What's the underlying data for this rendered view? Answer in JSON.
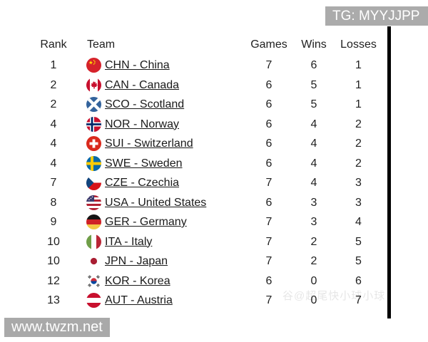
{
  "badges": {
    "top_right": "TG: MYYJJPP",
    "bottom_left": "www.twzm.net"
  },
  "faint_watermark": "谷@超尾快小球小球",
  "table": {
    "headers": {
      "rank": "Rank",
      "team": "Team",
      "games": "Games",
      "wins": "Wins",
      "losses": "Losses"
    },
    "rows": [
      {
        "rank": "1",
        "flag": "chn",
        "flag_name": "china-flag-icon",
        "team": "CHN - China",
        "games": "7",
        "wins": "6",
        "losses": "1"
      },
      {
        "rank": "2",
        "flag": "can",
        "flag_name": "canada-flag-icon",
        "team": "CAN - Canada",
        "games": "6",
        "wins": "5",
        "losses": "1"
      },
      {
        "rank": "2",
        "flag": "sco",
        "flag_name": "scotland-flag-icon",
        "team": "SCO - Scotland",
        "games": "6",
        "wins": "5",
        "losses": "1"
      },
      {
        "rank": "4",
        "flag": "nor",
        "flag_name": "norway-flag-icon",
        "team": "NOR - Norway",
        "games": "6",
        "wins": "4",
        "losses": "2"
      },
      {
        "rank": "4",
        "flag": "sui",
        "flag_name": "switzerland-flag-icon",
        "team": "SUI - Switzerland",
        "games": "6",
        "wins": "4",
        "losses": "2"
      },
      {
        "rank": "4",
        "flag": "swe",
        "flag_name": "sweden-flag-icon",
        "team": "SWE - Sweden",
        "games": "6",
        "wins": "4",
        "losses": "2"
      },
      {
        "rank": "7",
        "flag": "cze",
        "flag_name": "czechia-flag-icon",
        "team": "CZE - Czechia",
        "games": "7",
        "wins": "4",
        "losses": "3"
      },
      {
        "rank": "8",
        "flag": "usa",
        "flag_name": "united-states-flag-icon",
        "team": "USA - United States",
        "games": "6",
        "wins": "3",
        "losses": "3"
      },
      {
        "rank": "9",
        "flag": "ger",
        "flag_name": "germany-flag-icon",
        "team": "GER - Germany",
        "games": "7",
        "wins": "3",
        "losses": "4"
      },
      {
        "rank": "10",
        "flag": "ita",
        "flag_name": "italy-flag-icon",
        "team": "ITA - Italy",
        "games": "7",
        "wins": "2",
        "losses": "5"
      },
      {
        "rank": "10",
        "flag": "jpn",
        "flag_name": "japan-flag-icon",
        "team": "JPN - Japan",
        "games": "7",
        "wins": "2",
        "losses": "5"
      },
      {
        "rank": "12",
        "flag": "kor",
        "flag_name": "korea-flag-icon",
        "team": "KOR - Korea",
        "games": "6",
        "wins": "0",
        "losses": "6"
      },
      {
        "rank": "13",
        "flag": "aut",
        "flag_name": "austria-flag-icon",
        "team": "AUT - Austria",
        "games": "7",
        "wins": "0",
        "losses": "7"
      }
    ]
  },
  "colors": {
    "badge_bg": "#ababab",
    "text": "#1f1f1f",
    "scrollbar": "#000000"
  }
}
